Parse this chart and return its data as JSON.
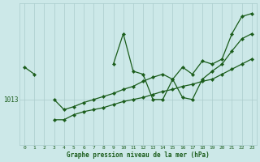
{
  "x": [
    0,
    1,
    2,
    3,
    4,
    5,
    6,
    7,
    8,
    9,
    10,
    11,
    12,
    13,
    14,
    15,
    16,
    17,
    18,
    19,
    20,
    21,
    22,
    23
  ],
  "line1": [
    1016.2,
    1015.5,
    null,
    null,
    null,
    null,
    null,
    null,
    null,
    1016.5,
    1019.5,
    1015.8,
    1015.5,
    1013.0,
    1013.0,
    1015.0,
    1016.2,
    1015.5,
    1016.8,
    1016.5,
    1017.0,
    1019.5,
    1021.2,
    1021.5
  ],
  "line2": [
    null,
    null,
    null,
    1013.0,
    1012.0,
    1012.3,
    1012.7,
    1013.0,
    1013.3,
    1013.6,
    1014.0,
    1014.3,
    1014.8,
    1015.2,
    1015.5,
    1015.0,
    1013.2,
    1013.0,
    1015.0,
    1015.8,
    1016.5,
    1017.8,
    1019.0,
    1019.5
  ],
  "line3": [
    null,
    null,
    null,
    1011.0,
    1011.0,
    1011.5,
    1011.8,
    1012.0,
    1012.2,
    1012.5,
    1012.8,
    1013.0,
    1013.2,
    1013.5,
    1013.8,
    1014.0,
    1014.3,
    1014.5,
    1014.8,
    1015.0,
    1015.5,
    1016.0,
    1016.5,
    1017.0
  ],
  "background_color": "#cce8e8",
  "grid_color": "#aacccc",
  "line_color": "#1a5c1a",
  "xlabel": "Graphe pression niveau de la mer (hPa)",
  "ylabel": "1013",
  "y_label_value": 1013.0,
  "ylim_min": 1008.5,
  "ylim_max": 1022.5,
  "xlim_min": -0.5,
  "xlim_max": 23.5,
  "tick_labels": [
    "0",
    "1",
    "2",
    "3",
    "4",
    "5",
    "6",
    "7",
    "8",
    "9",
    "10",
    "11",
    "12",
    "13",
    "14",
    "15",
    "16",
    "17",
    "18",
    "19",
    "20",
    "21",
    "22",
    "23"
  ]
}
